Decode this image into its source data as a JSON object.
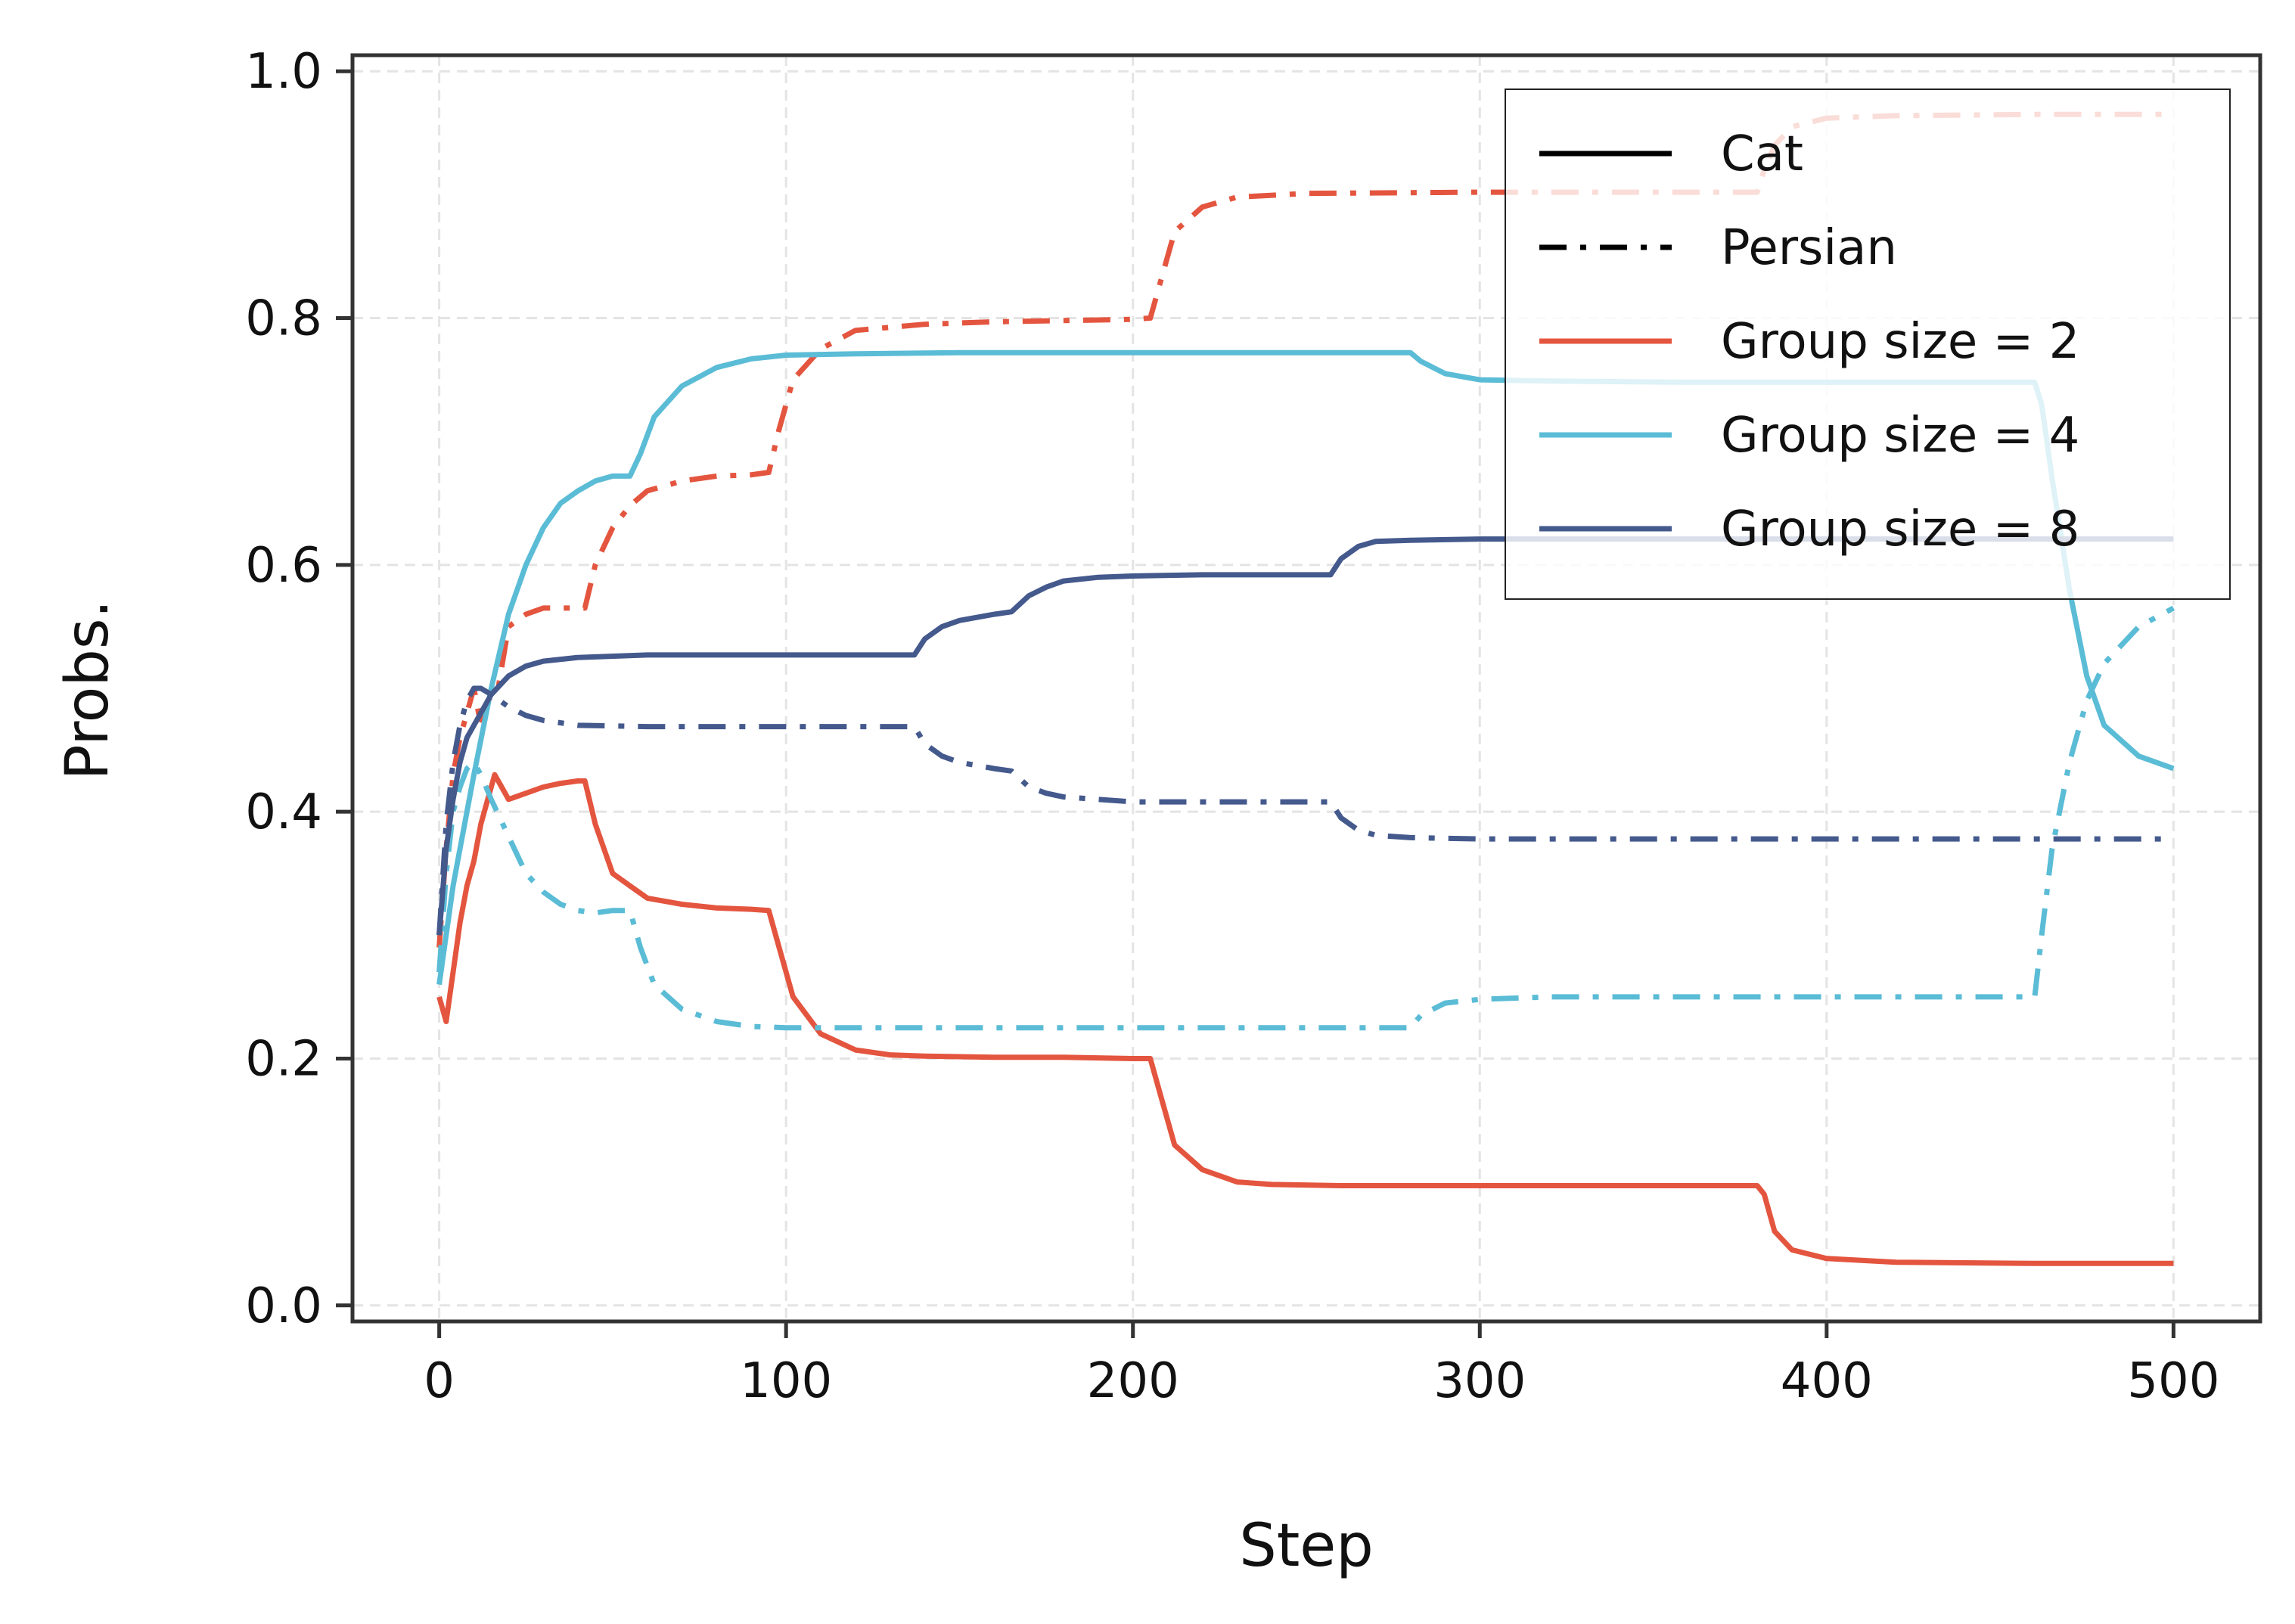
{
  "chart_data": {
    "type": "line",
    "title": "",
    "xlabel": "Step",
    "ylabel": "Probs.",
    "xlim": [
      -25,
      525
    ],
    "ylim": [
      -0.013,
      1.013
    ],
    "xticks": [
      0,
      100,
      200,
      300,
      400,
      500
    ],
    "xtick_labels": [
      "0",
      "100",
      "200",
      "300",
      "400",
      "500"
    ],
    "yticks": [
      0.0,
      0.2,
      0.4,
      0.6,
      0.8,
      1.0
    ],
    "ytick_labels": [
      "0.0",
      "0.2",
      "0.4",
      "0.6",
      "0.8",
      "1.0"
    ],
    "grid": true,
    "legend": {
      "position": "top-right",
      "entries": [
        {
          "label": "Cat",
          "kind": "style",
          "dash": "solid",
          "color": "#000000"
        },
        {
          "label": "Persian",
          "kind": "style",
          "dash": "dashdot",
          "color": "#000000"
        },
        {
          "label": "Group size = 2",
          "kind": "color",
          "dash": "solid",
          "color": "#E4553F"
        },
        {
          "label": "Group size = 4",
          "kind": "color",
          "dash": "solid",
          "color": "#5BBCD6"
        },
        {
          "label": "Group size = 8",
          "kind": "color",
          "dash": "solid",
          "color": "#44598C"
        }
      ]
    },
    "series": [
      {
        "name": "Group size = 2 (Cat)",
        "color": "#E4553F",
        "dash": "solid",
        "x": [
          0,
          2,
          4,
          6,
          8,
          10,
          12,
          14,
          16,
          18,
          20,
          25,
          30,
          35,
          40,
          42,
          45,
          50,
          55,
          60,
          70,
          80,
          90,
          95,
          98,
          102,
          110,
          120,
          130,
          140,
          160,
          180,
          200,
          205,
          208,
          212,
          220,
          230,
          240,
          260,
          300,
          340,
          380,
          382,
          385,
          390,
          400,
          420,
          460,
          500
        ],
        "y": [
          0.25,
          0.23,
          0.27,
          0.31,
          0.34,
          0.36,
          0.39,
          0.41,
          0.43,
          0.42,
          0.41,
          0.415,
          0.42,
          0.423,
          0.425,
          0.425,
          0.39,
          0.35,
          0.34,
          0.33,
          0.325,
          0.322,
          0.321,
          0.32,
          0.29,
          0.25,
          0.22,
          0.207,
          0.203,
          0.202,
          0.201,
          0.201,
          0.2,
          0.2,
          0.17,
          0.13,
          0.11,
          0.1,
          0.098,
          0.097,
          0.097,
          0.097,
          0.097,
          0.09,
          0.06,
          0.045,
          0.038,
          0.035,
          0.034,
          0.034
        ]
      },
      {
        "name": "Group size = 2 (Persian)",
        "color": "#E4553F",
        "dash": "dashdot",
        "x": [
          0,
          2,
          4,
          6,
          8,
          10,
          12,
          14,
          17,
          20,
          25,
          30,
          35,
          40,
          42,
          45,
          50,
          55,
          60,
          70,
          80,
          90,
          95,
          98,
          102,
          110,
          120,
          140,
          160,
          180,
          200,
          205,
          208,
          212,
          220,
          230,
          250,
          300,
          340,
          380,
          382,
          385,
          390,
          400,
          420,
          460,
          500
        ],
        "y": [
          0.29,
          0.37,
          0.43,
          0.46,
          0.48,
          0.5,
          0.47,
          0.49,
          0.5,
          0.55,
          0.56,
          0.565,
          0.565,
          0.565,
          0.565,
          0.6,
          0.63,
          0.648,
          0.66,
          0.668,
          0.672,
          0.673,
          0.675,
          0.71,
          0.75,
          0.775,
          0.79,
          0.795,
          0.797,
          0.798,
          0.799,
          0.8,
          0.83,
          0.87,
          0.89,
          0.898,
          0.901,
          0.902,
          0.902,
          0.902,
          0.92,
          0.94,
          0.955,
          0.962,
          0.964,
          0.965,
          0.965
        ]
      },
      {
        "name": "Group size = 4 (Cat)",
        "color": "#5BBCD6",
        "dash": "solid",
        "x": [
          0,
          2,
          4,
          6,
          8,
          10,
          15,
          20,
          25,
          30,
          35,
          40,
          45,
          50,
          55,
          58,
          62,
          70,
          80,
          90,
          100,
          120,
          150,
          200,
          250,
          280,
          283,
          290,
          300,
          320,
          360,
          400,
          440,
          460,
          462,
          465,
          470,
          475,
          480,
          490,
          500
        ],
        "y": [
          0.26,
          0.3,
          0.34,
          0.37,
          0.4,
          0.43,
          0.5,
          0.56,
          0.6,
          0.63,
          0.65,
          0.66,
          0.668,
          0.672,
          0.672,
          0.69,
          0.72,
          0.745,
          0.76,
          0.767,
          0.77,
          0.771,
          0.772,
          0.772,
          0.772,
          0.772,
          0.765,
          0.755,
          0.75,
          0.749,
          0.748,
          0.748,
          0.748,
          0.748,
          0.73,
          0.67,
          0.58,
          0.51,
          0.47,
          0.445,
          0.435
        ]
      },
      {
        "name": "Group size = 4 (Persian)",
        "color": "#5BBCD6",
        "dash": "dashdot",
        "x": [
          0,
          2,
          4,
          6,
          8,
          10,
          12,
          15,
          20,
          25,
          30,
          35,
          40,
          45,
          50,
          55,
          58,
          62,
          70,
          80,
          90,
          100,
          120,
          150,
          200,
          250,
          280,
          283,
          290,
          300,
          320,
          360,
          400,
          440,
          460,
          462,
          465,
          470,
          475,
          480,
          490,
          500
        ],
        "y": [
          0.27,
          0.35,
          0.4,
          0.42,
          0.435,
          0.44,
          0.43,
          0.41,
          0.38,
          0.35,
          0.335,
          0.325,
          0.32,
          0.318,
          0.32,
          0.32,
          0.29,
          0.26,
          0.24,
          0.23,
          0.226,
          0.225,
          0.225,
          0.225,
          0.225,
          0.225,
          0.225,
          0.235,
          0.245,
          0.248,
          0.25,
          0.25,
          0.25,
          0.25,
          0.25,
          0.3,
          0.37,
          0.44,
          0.49,
          0.52,
          0.55,
          0.565
        ]
      },
      {
        "name": "Group size = 8 (Cat)",
        "color": "#44598C",
        "dash": "solid",
        "x": [
          0,
          2,
          4,
          6,
          8,
          10,
          12,
          15,
          20,
          25,
          30,
          40,
          60,
          80,
          100,
          120,
          137,
          140,
          145,
          150,
          160,
          165,
          170,
          175,
          180,
          190,
          200,
          220,
          240,
          257,
          260,
          265,
          270,
          280,
          300,
          350,
          400,
          450,
          500
        ],
        "y": [
          0.3,
          0.37,
          0.41,
          0.44,
          0.46,
          0.47,
          0.48,
          0.495,
          0.51,
          0.518,
          0.522,
          0.525,
          0.527,
          0.527,
          0.527,
          0.527,
          0.527,
          0.54,
          0.55,
          0.555,
          0.56,
          0.562,
          0.575,
          0.582,
          0.587,
          0.59,
          0.591,
          0.592,
          0.592,
          0.592,
          0.605,
          0.615,
          0.619,
          0.62,
          0.621,
          0.621,
          0.621,
          0.621,
          0.621
        ]
      },
      {
        "name": "Group size = 8 (Persian)",
        "color": "#44598C",
        "dash": "dashdot",
        "x": [
          0,
          2,
          4,
          6,
          8,
          10,
          12,
          15,
          20,
          25,
          30,
          40,
          60,
          80,
          100,
          120,
          137,
          140,
          145,
          150,
          160,
          165,
          170,
          175,
          180,
          190,
          200,
          220,
          240,
          257,
          260,
          265,
          270,
          280,
          300,
          350,
          400,
          450,
          500
        ],
        "y": [
          0.3,
          0.39,
          0.44,
          0.47,
          0.49,
          0.5,
          0.5,
          0.495,
          0.485,
          0.478,
          0.474,
          0.47,
          0.469,
          0.469,
          0.469,
          0.469,
          0.469,
          0.455,
          0.445,
          0.44,
          0.435,
          0.433,
          0.42,
          0.415,
          0.412,
          0.41,
          0.408,
          0.408,
          0.408,
          0.408,
          0.395,
          0.385,
          0.381,
          0.379,
          0.378,
          0.378,
          0.378,
          0.378,
          0.378
        ]
      }
    ]
  }
}
